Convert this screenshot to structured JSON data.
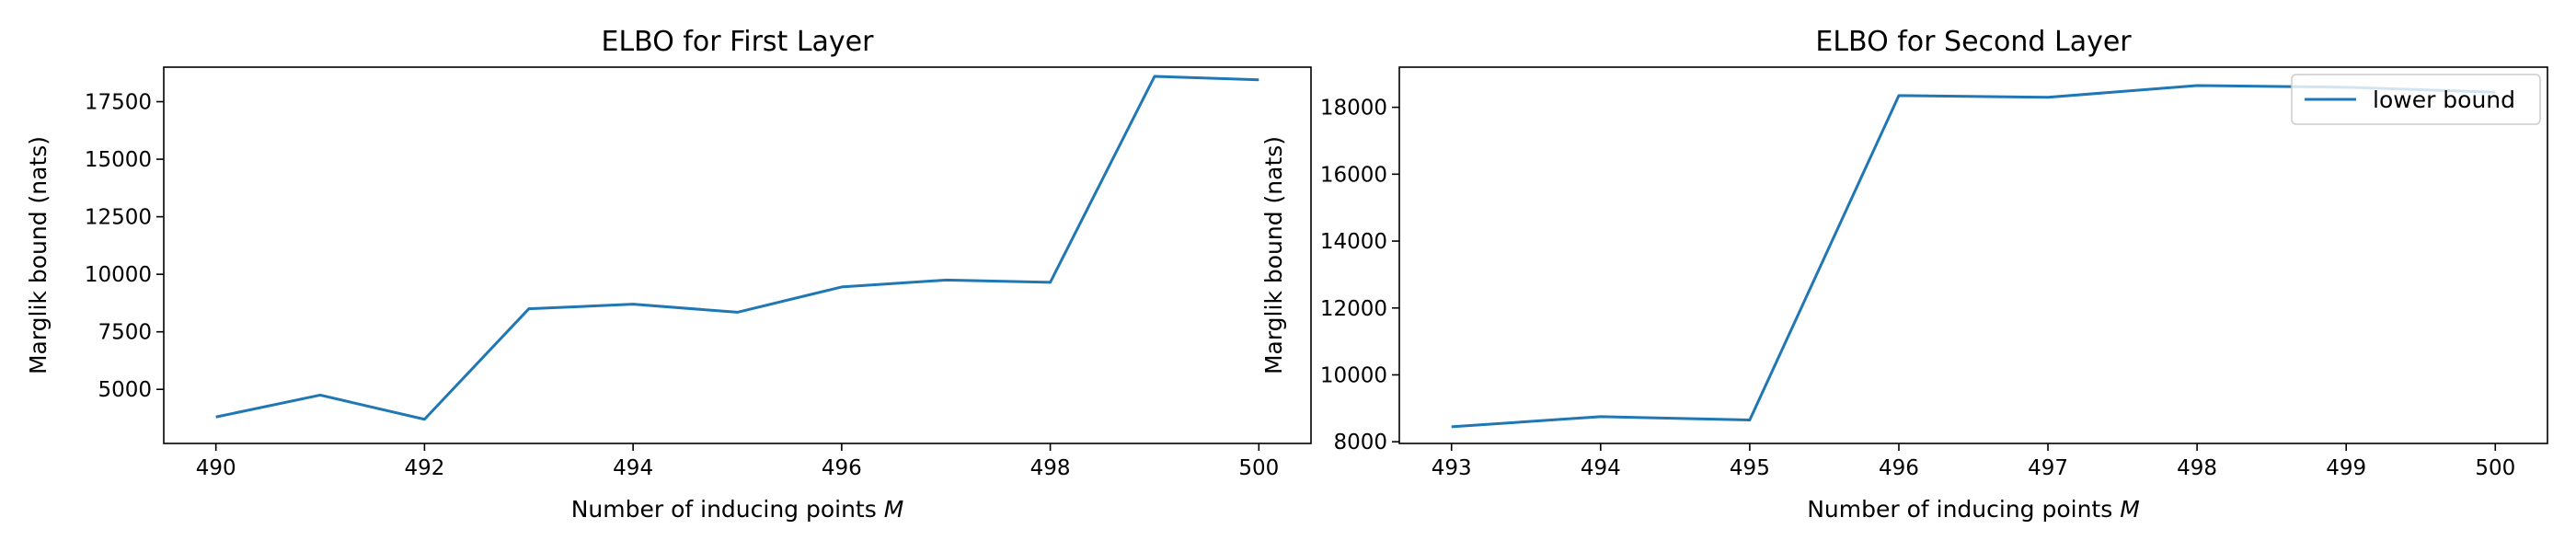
{
  "chart_data": [
    {
      "type": "line",
      "title": "ELBO for First Layer",
      "xlabel": "Number of inducing points",
      "xlabel_symbol": "M",
      "ylabel": "Marglik bound (nats)",
      "x": [
        490,
        491,
        492,
        493,
        494,
        495,
        496,
        497,
        498,
        499,
        500
      ],
      "series": [
        {
          "values": [
            3800,
            4750,
            3700,
            8500,
            8700,
            8350,
            9450,
            9750,
            9650,
            18600,
            18450
          ],
          "color": "#1f77b4"
        }
      ],
      "xticks": [
        490,
        492,
        494,
        496,
        498,
        500
      ],
      "xtick_labels": [
        "490",
        "492",
        "494",
        "496",
        "498",
        "500"
      ],
      "yticks": [
        5000,
        7500,
        10000,
        12500,
        15000,
        17500
      ],
      "ytick_labels": [
        "5000",
        "7500",
        "10000",
        "12500",
        "15000",
        "17500"
      ],
      "xlim": [
        489.5,
        500.5
      ],
      "ylim": [
        2650,
        19000
      ],
      "grid": false
    },
    {
      "type": "line",
      "title": "ELBO for Second Layer",
      "xlabel": "Number of inducing points",
      "xlabel_symbol": "M",
      "ylabel": "Marglik bound (nats)",
      "x": [
        493,
        494,
        495,
        496,
        497,
        498,
        499,
        500
      ],
      "series": [
        {
          "name": "lower bound",
          "values": [
            8450,
            8750,
            8650,
            18350,
            18300,
            18650,
            18600,
            18450
          ],
          "color": "#1f77b4"
        }
      ],
      "xticks": [
        493,
        494,
        495,
        496,
        497,
        498,
        499,
        500
      ],
      "xtick_labels": [
        "493",
        "494",
        "495",
        "496",
        "497",
        "498",
        "499",
        "500"
      ],
      "yticks": [
        8000,
        10000,
        12000,
        14000,
        16000,
        18000
      ],
      "ytick_labels": [
        "8000",
        "10000",
        "12000",
        "14000",
        "16000",
        "18000"
      ],
      "xlim": [
        492.65,
        500.35
      ],
      "ylim": [
        7950,
        19200
      ],
      "grid": false,
      "legend": "top-right"
    }
  ]
}
